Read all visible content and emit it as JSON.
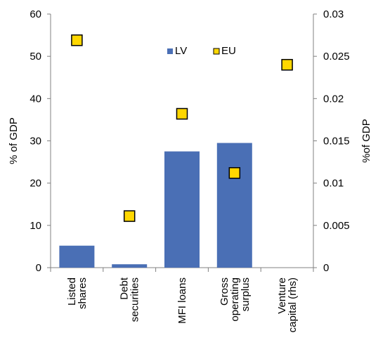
{
  "chart_data": {
    "type": "bar",
    "categories": [
      [
        "Listed",
        "shares"
      ],
      [
        "Debt",
        "securities"
      ],
      [
        "MFI loans"
      ],
      [
        "Gross",
        "operating",
        "surplus"
      ],
      [
        "Venture",
        "capital (rhs)"
      ]
    ],
    "ylabel": "% of GDP",
    "y2label": "%of GDP",
    "ylim": [
      0,
      60
    ],
    "y2lim": [
      0,
      0.03
    ],
    "yticks": [
      "0",
      "10",
      "20",
      "30",
      "40",
      "50",
      "60"
    ],
    "y2ticks": [
      "0",
      "0.005",
      "0.01",
      "0.015",
      "0.02",
      "0.025",
      "0.03"
    ],
    "grid": false,
    "legend_position": "top-center",
    "series": [
      {
        "name": "LV",
        "type": "bar",
        "axis": "left",
        "color": "#4a6fb5",
        "values": [
          5.2,
          0.8,
          27.5,
          29.5,
          null
        ]
      },
      {
        "name": "EU",
        "type": "marker",
        "axis": "left-for-first-four-right-for-last",
        "color": "#ffd700",
        "values": [
          53.8,
          12.2,
          36.4,
          22.4,
          0.024
        ]
      }
    ]
  }
}
